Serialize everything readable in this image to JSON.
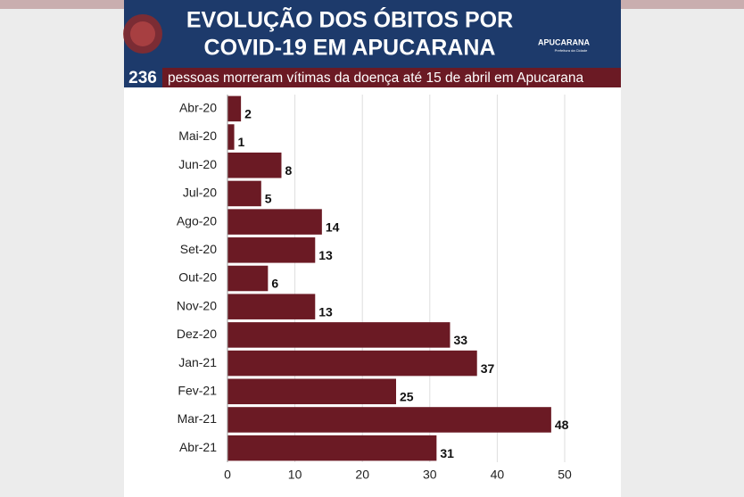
{
  "chart_data": {
    "type": "bar",
    "orientation": "horizontal",
    "title": [
      "EVOLUÇÃO DOS ÓBITOS POR",
      "COVID-19 EM APUCARANA"
    ],
    "subtitle_number": "236",
    "subtitle": "pessoas morreram vítimas da doença até 15 de abril em Apucarana",
    "logo": [
      "APUCARANA",
      "Prefeitura da Cidade"
    ],
    "categories": [
      "Abr-20",
      "Mai-20",
      "Jun-20",
      "Jul-20",
      "Ago-20",
      "Set-20",
      "Out-20",
      "Nov-20",
      "Dez-20",
      "Jan-21",
      "Fev-21",
      "Mar-21",
      "Abr-21"
    ],
    "values": [
      2,
      1,
      8,
      5,
      14,
      13,
      6,
      13,
      33,
      37,
      25,
      48,
      31
    ],
    "color": "#6b1a24",
    "xlim": [
      0,
      50
    ],
    "xticks": [
      0,
      10,
      20,
      30,
      40,
      50
    ],
    "grid": true
  }
}
